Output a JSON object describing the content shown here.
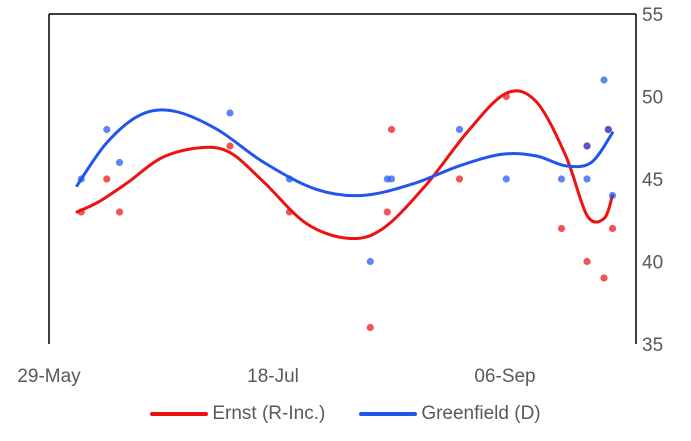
{
  "chart_data": {
    "type": "scatter",
    "title": "",
    "xlabel": "",
    "ylabel": "",
    "x_ticks": [
      "29-May",
      "18-Jul",
      "06-Sep"
    ],
    "y_ticks": [
      "35",
      "40",
      "45",
      "50",
      "55"
    ],
    "x_range": [
      "2023-05-29",
      "2023-09-30"
    ],
    "ylim": [
      35,
      55
    ],
    "y_axis_side": "right",
    "grid": false,
    "legend_position": "bottom",
    "series": [
      {
        "name": "Ernst (R-Inc.)",
        "color": "#ee1111",
        "points": [
          {
            "x": "2023-05-30",
            "y": 43
          },
          {
            "x": "2023-06-05",
            "y": 45
          },
          {
            "x": "2023-06-08",
            "y": 43
          },
          {
            "x": "2023-07-04",
            "y": 47
          },
          {
            "x": "2023-07-18",
            "y": 43
          },
          {
            "x": "2023-08-06",
            "y": 36
          },
          {
            "x": "2023-08-10",
            "y": 43
          },
          {
            "x": "2023-08-11",
            "y": 48
          },
          {
            "x": "2023-08-27",
            "y": 45
          },
          {
            "x": "2023-09-07",
            "y": 50
          },
          {
            "x": "2023-09-20",
            "y": 42
          },
          {
            "x": "2023-09-26",
            "y": 40
          },
          {
            "x": "2023-09-26",
            "y": 47
          },
          {
            "x": "2023-09-30",
            "y": 39
          },
          {
            "x": "2023-10-01",
            "y": 48
          },
          {
            "x": "2023-10-02",
            "y": 42
          }
        ],
        "trend": [
          {
            "x": "2023-05-29",
            "y": 43.0
          },
          {
            "x": "2023-06-03",
            "y": 43.6
          },
          {
            "x": "2023-06-10",
            "y": 44.8
          },
          {
            "x": "2023-06-18",
            "y": 46.3
          },
          {
            "x": "2023-06-27",
            "y": 46.9
          },
          {
            "x": "2023-07-04",
            "y": 46.6
          },
          {
            "x": "2023-07-12",
            "y": 44.8
          },
          {
            "x": "2023-07-22",
            "y": 42.3
          },
          {
            "x": "2023-08-01",
            "y": 41.4
          },
          {
            "x": "2023-08-09",
            "y": 42.0
          },
          {
            "x": "2023-08-19",
            "y": 44.6
          },
          {
            "x": "2023-08-29",
            "y": 47.9
          },
          {
            "x": "2023-09-07",
            "y": 50.2
          },
          {
            "x": "2023-09-14",
            "y": 49.7
          },
          {
            "x": "2023-09-21",
            "y": 46.4
          },
          {
            "x": "2023-09-26",
            "y": 42.8
          },
          {
            "x": "2023-09-30",
            "y": 42.6
          },
          {
            "x": "2023-10-02",
            "y": 44.0
          }
        ]
      },
      {
        "name": "Greenfield (D)",
        "color": "#2255ee",
        "points": [
          {
            "x": "2023-05-30",
            "y": 45
          },
          {
            "x": "2023-06-05",
            "y": 48
          },
          {
            "x": "2023-06-08",
            "y": 46
          },
          {
            "x": "2023-07-04",
            "y": 49
          },
          {
            "x": "2023-07-18",
            "y": 45
          },
          {
            "x": "2023-08-06",
            "y": 40
          },
          {
            "x": "2023-08-10",
            "y": 45
          },
          {
            "x": "2023-08-11",
            "y": 45
          },
          {
            "x": "2023-08-27",
            "y": 48
          },
          {
            "x": "2023-09-07",
            "y": 45
          },
          {
            "x": "2023-09-20",
            "y": 45
          },
          {
            "x": "2023-09-26",
            "y": 45
          },
          {
            "x": "2023-09-26",
            "y": 47
          },
          {
            "x": "2023-09-30",
            "y": 51
          },
          {
            "x": "2023-10-01",
            "y": 48
          },
          {
            "x": "2023-10-02",
            "y": 44
          }
        ],
        "trend": [
          {
            "x": "2023-05-29",
            "y": 44.6
          },
          {
            "x": "2023-06-05",
            "y": 47.2
          },
          {
            "x": "2023-06-13",
            "y": 48.9
          },
          {
            "x": "2023-06-21",
            "y": 49.1
          },
          {
            "x": "2023-07-01",
            "y": 48.0
          },
          {
            "x": "2023-07-12",
            "y": 46.0
          },
          {
            "x": "2023-07-24",
            "y": 44.4
          },
          {
            "x": "2023-08-04",
            "y": 44.0
          },
          {
            "x": "2023-08-16",
            "y": 44.7
          },
          {
            "x": "2023-08-27",
            "y": 45.8
          },
          {
            "x": "2023-09-06",
            "y": 46.5
          },
          {
            "x": "2023-09-14",
            "y": 46.4
          },
          {
            "x": "2023-09-21",
            "y": 45.8
          },
          {
            "x": "2023-09-27",
            "y": 46.0
          },
          {
            "x": "2023-10-02",
            "y": 47.8
          }
        ]
      }
    ]
  }
}
